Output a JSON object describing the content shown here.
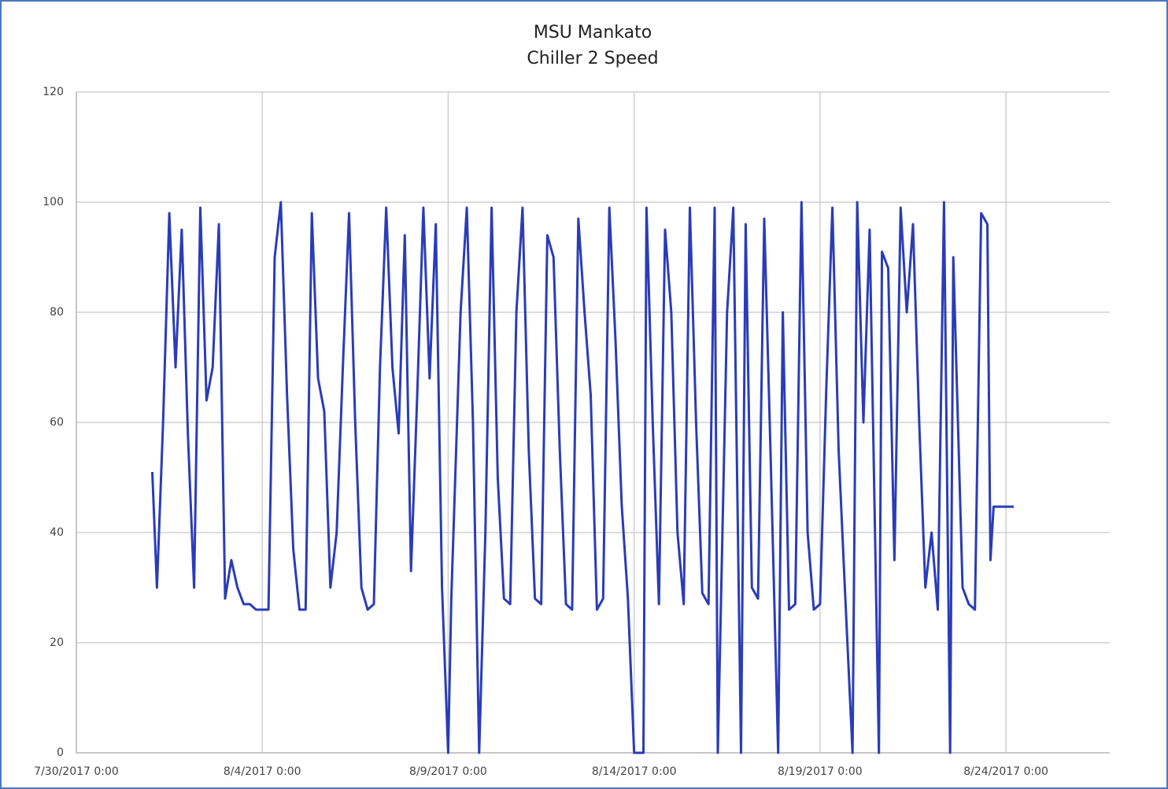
{
  "chart_data": {
    "type": "line",
    "title": "MSU Mankato",
    "subtitle": "Chiller 2 Speed",
    "x": [
      "8/1/2017 1:00",
      "8/1/2017 4:00",
      "8/1/2017 8:00",
      "8/1/2017 12:00",
      "8/1/2017 16:00",
      "8/1/2017 20:00",
      "8/2/2017 0:00",
      "8/2/2017 4:00",
      "8/2/2017 8:00",
      "8/2/2017 12:00",
      "8/2/2017 16:00",
      "8/2/2017 20:00",
      "8/3/2017 0:00",
      "8/3/2017 4:00",
      "8/3/2017 8:00",
      "8/3/2017 12:00",
      "8/3/2017 16:00",
      "8/3/2017 20:00",
      "8/4/2017 0:00",
      "8/4/2017 4:00",
      "8/4/2017 8:00",
      "8/4/2017 12:00",
      "8/4/2017 16:00",
      "8/4/2017 20:00",
      "8/5/2017 0:00",
      "8/5/2017 4:00",
      "8/5/2017 8:00",
      "8/5/2017 12:00",
      "8/5/2017 16:00",
      "8/5/2017 20:00",
      "8/6/2017 0:00",
      "8/6/2017 4:00",
      "8/6/2017 8:00",
      "8/6/2017 12:00",
      "8/6/2017 16:00",
      "8/6/2017 20:00",
      "8/7/2017 0:00",
      "8/7/2017 4:00",
      "8/7/2017 8:00",
      "8/7/2017 12:00",
      "8/7/2017 16:00",
      "8/7/2017 20:00",
      "8/8/2017 0:00",
      "8/8/2017 4:00",
      "8/8/2017 8:00",
      "8/8/2017 12:00",
      "8/8/2017 16:00",
      "8/8/2017 20:00",
      "8/9/2017 0:00",
      "8/9/2017 2:00",
      "8/9/2017 8:00",
      "8/9/2017 12:00",
      "8/9/2017 16:00",
      "8/9/2017 20:00",
      "8/10/2017 0:00",
      "8/10/2017 4:00",
      "8/10/2017 8:00",
      "8/10/2017 12:00",
      "8/10/2017 16:00",
      "8/10/2017 20:00",
      "8/11/2017 0:00",
      "8/11/2017 4:00",
      "8/11/2017 8:00",
      "8/11/2017 12:00",
      "8/11/2017 16:00",
      "8/11/2017 20:00",
      "8/12/2017 0:00",
      "8/12/2017 4:00",
      "8/12/2017 8:00",
      "8/12/2017 12:00",
      "8/12/2017 16:00",
      "8/12/2017 20:00",
      "8/13/2017 0:00",
      "8/13/2017 4:00",
      "8/13/2017 8:00",
      "8/13/2017 12:00",
      "8/13/2017 16:00",
      "8/13/2017 20:00",
      "8/14/2017 0:00",
      "8/14/2017 6:00",
      "8/14/2017 8:00",
      "8/14/2017 12:00",
      "8/14/2017 16:00",
      "8/14/2017 20:00",
      "8/15/2017 0:00",
      "8/15/2017 4:00",
      "8/15/2017 8:00",
      "8/15/2017 12:00",
      "8/15/2017 16:00",
      "8/15/2017 20:00",
      "8/16/2017 0:00",
      "8/16/2017 4:00",
      "8/16/2017 6:00",
      "8/16/2017 12:00",
      "8/16/2017 16:00",
      "8/16/2017 21:00",
      "8/17/2017 0:00",
      "8/17/2017 4:00",
      "8/17/2017 8:00",
      "8/17/2017 12:00",
      "8/17/2017 16:00",
      "8/17/2017 21:00",
      "8/18/2017 0:00",
      "8/18/2017 4:00",
      "8/18/2017 8:00",
      "8/18/2017 12:00",
      "8/18/2017 16:00",
      "8/18/2017 20:00",
      "8/19/2017 0:00",
      "8/19/2017 4:00",
      "8/19/2017 8:00",
      "8/19/2017 12:00",
      "8/19/2017 16:00",
      "8/19/2017 21:00",
      "8/20/2017 0:00",
      "8/20/2017 4:00",
      "8/20/2017 8:00",
      "8/20/2017 14:00",
      "8/20/2017 16:00",
      "8/20/2017 20:00",
      "8/21/2017 0:00",
      "8/21/2017 4:00",
      "8/21/2017 8:00",
      "8/21/2017 12:00",
      "8/21/2017 16:00",
      "8/21/2017 20:00",
      "8/22/2017 0:00",
      "8/22/2017 4:00",
      "8/22/2017 8:00",
      "8/22/2017 12:00",
      "8/22/2017 14:00",
      "8/22/2017 20:00",
      "8/23/2017 0:00",
      "8/23/2017 4:00",
      "8/23/2017 8:00",
      "8/23/2017 12:00",
      "8/23/2017 14:00",
      "8/23/2017 16:00",
      "8/24/2017 5:00"
    ],
    "series": [
      {
        "name": "Chiller 2 Speed",
        "color": "#2a3cb8",
        "values": [
          51,
          30,
          60,
          98,
          70,
          95,
          58,
          30,
          99,
          64,
          70,
          96,
          28,
          35,
          30,
          27,
          27,
          26,
          26,
          26,
          90,
          100,
          65,
          37,
          26,
          26,
          98,
          68,
          62,
          30,
          40,
          70,
          98,
          60,
          30,
          26,
          27,
          70,
          99,
          70,
          58,
          94,
          33,
          65,
          99,
          68,
          96,
          30,
          0,
          28,
          80,
          99,
          60,
          0,
          40,
          99,
          50,
          28,
          27,
          80,
          99,
          55,
          28,
          27,
          94,
          90,
          55,
          27,
          26,
          97,
          80,
          65,
          26,
          28,
          99,
          75,
          45,
          28,
          0,
          0,
          99,
          60,
          27,
          95,
          80,
          40,
          27,
          99,
          60,
          29,
          27,
          99,
          0,
          80,
          99,
          0,
          96,
          30,
          28,
          97,
          55,
          0,
          80,
          26,
          27,
          100,
          40,
          26,
          27,
          66,
          99,
          55,
          30,
          0,
          100,
          60,
          95,
          0,
          91,
          88,
          35,
          99,
          80,
          96,
          60,
          30,
          40,
          26,
          100,
          0,
          90,
          30,
          27,
          26,
          98,
          96,
          35,
          44.7,
          44.7
        ]
      }
    ],
    "xlim": [
      "7/30/2017 0:00",
      "8/26/2017 19:00"
    ],
    "xticks": [
      "7/30/2017 0:00",
      "8/4/2017 0:00",
      "8/9/2017 0:00",
      "8/14/2017 0:00",
      "8/19/2017 0:00",
      "8/24/2017 0:00"
    ],
    "ylim": [
      0,
      120
    ],
    "yticks": [
      0,
      20,
      40,
      60,
      80,
      100,
      120
    ],
    "grid": true
  }
}
